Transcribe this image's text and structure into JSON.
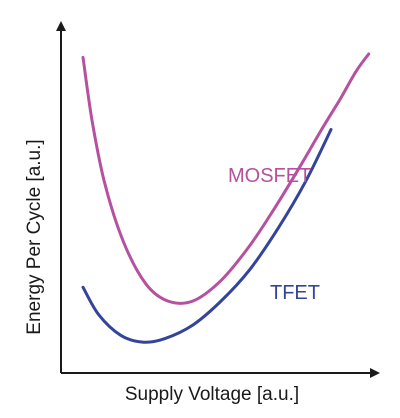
{
  "chart_data": {
    "type": "line",
    "title": "",
    "xlabel": "Supply Voltage [a.u.]",
    "ylabel": "Energy Per Cycle [a.u.]",
    "xlim": [
      0,
      1
    ],
    "ylim": [
      0,
      1
    ],
    "grid": false,
    "legend": "inline labels",
    "series": [
      {
        "name": "MOSFET",
        "color": "#b5519f",
        "x": [
          0.07,
          0.1,
          0.14,
          0.2,
          0.27,
          0.34,
          0.42,
          0.51,
          0.6,
          0.68,
          0.76,
          0.83,
          0.89,
          0.94,
          0.98
        ],
        "y": [
          0.92,
          0.73,
          0.55,
          0.38,
          0.26,
          0.21,
          0.21,
          0.27,
          0.37,
          0.48,
          0.6,
          0.71,
          0.8,
          0.88,
          0.93
        ]
      },
      {
        "name": "TFET",
        "color": "#33449b",
        "x": [
          0.07,
          0.12,
          0.19,
          0.26,
          0.33,
          0.42,
          0.51,
          0.6,
          0.69,
          0.78,
          0.86
        ],
        "y": [
          0.25,
          0.17,
          0.11,
          0.09,
          0.1,
          0.14,
          0.21,
          0.3,
          0.42,
          0.56,
          0.71
        ]
      }
    ]
  }
}
